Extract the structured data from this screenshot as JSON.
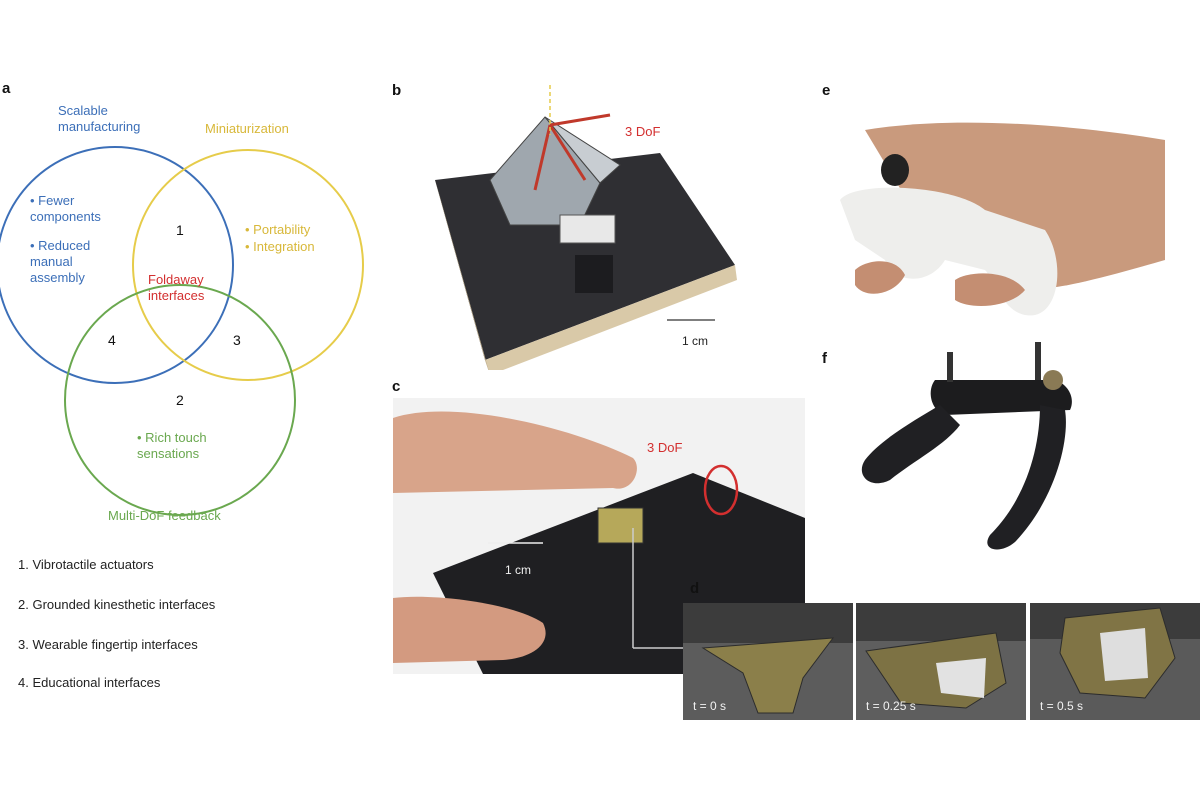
{
  "panels": {
    "a": "a",
    "b": "b",
    "c": "c",
    "d": "d",
    "e": "e",
    "f": "f"
  },
  "venn": {
    "blue_title": "Scalable manufacturing",
    "yellow_title": "Miniaturization",
    "green_title": "Multi-DoF feedback",
    "center": "Foldaway interfaces",
    "blue_bullets": [
      "• Fewer components",
      "• Reduced manual assembly"
    ],
    "yellow_bullets": [
      "• Portability",
      "• Integration"
    ],
    "green_bullets": [
      "• Rich touch sensations"
    ],
    "numbers": [
      "1",
      "2",
      "3",
      "4"
    ]
  },
  "legend": [
    "1. Vibrotactile actuators",
    "2. Grounded kinesthetic interfaces",
    "3. Wearable fingertip interfaces",
    "4. Educational interfaces"
  ],
  "panel_b": {
    "dof": "3 DoF",
    "scale": "1 cm"
  },
  "panel_c": {
    "dof": "3 DoF",
    "scale": "1 cm"
  },
  "panel_d": {
    "times": [
      "t = 0 s",
      "t = 0.25 s",
      "t = 0.5 s"
    ]
  },
  "colors": {
    "blue": "#3c6fb8",
    "yellow": "#e6cc4a",
    "green": "#6aa84f",
    "red": "#d32f2f"
  }
}
